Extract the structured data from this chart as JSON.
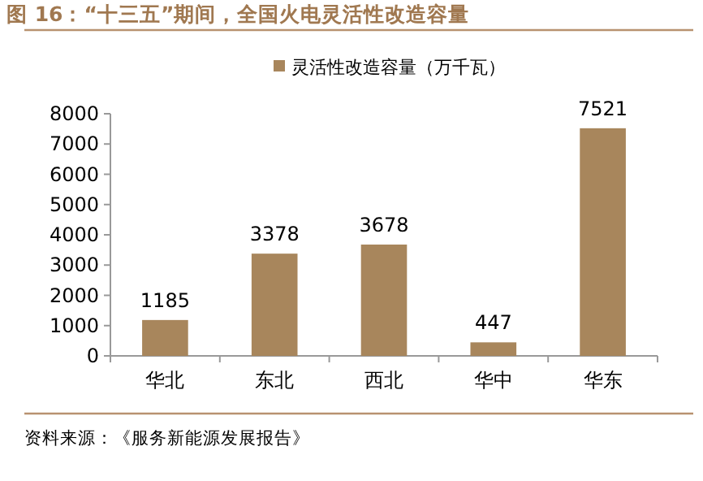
{
  "chart_data": {
    "type": "bar",
    "title": "图 16：“十三五”期间，全国火电灵活性改造容量",
    "categories": [
      "华北",
      "东北",
      "西北",
      "华中",
      "华东"
    ],
    "series": [
      {
        "name": "灵活性改造容量（万千瓦）",
        "color": "#a8865c",
        "values": [
          1185,
          3378,
          3678,
          447,
          7521
        ]
      }
    ],
    "ylim": [
      0,
      8000
    ],
    "yticks": [
      0,
      1000,
      2000,
      3000,
      4000,
      5000,
      6000,
      7000,
      8000
    ],
    "data_labels": true,
    "legend": "top",
    "grid": false,
    "annotations": [
      "资料来源：《服务新能源发展报告》"
    ]
  }
}
